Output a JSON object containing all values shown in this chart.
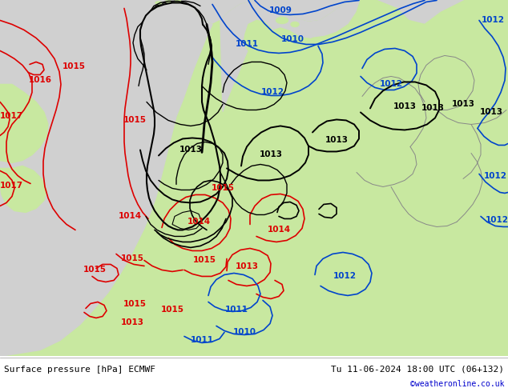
{
  "title_left": "Surface pressure [hPa] ECMWF",
  "title_right": "Tu 11-06-2024 18:00 UTC (06+132)",
  "copyright": "©weatheronline.co.uk",
  "sea_color": "#d0d0d0",
  "land_color": "#c8e8a0",
  "footer_bg": "#ffffff",
  "black_line": "#000000",
  "red_line": "#dd0000",
  "blue_line": "#0044cc",
  "gray_border": "#888888",
  "label_fs": 7.5,
  "lw_contour": 1.2,
  "lw_border": 1.5,
  "lw_black_contour": 1.4
}
